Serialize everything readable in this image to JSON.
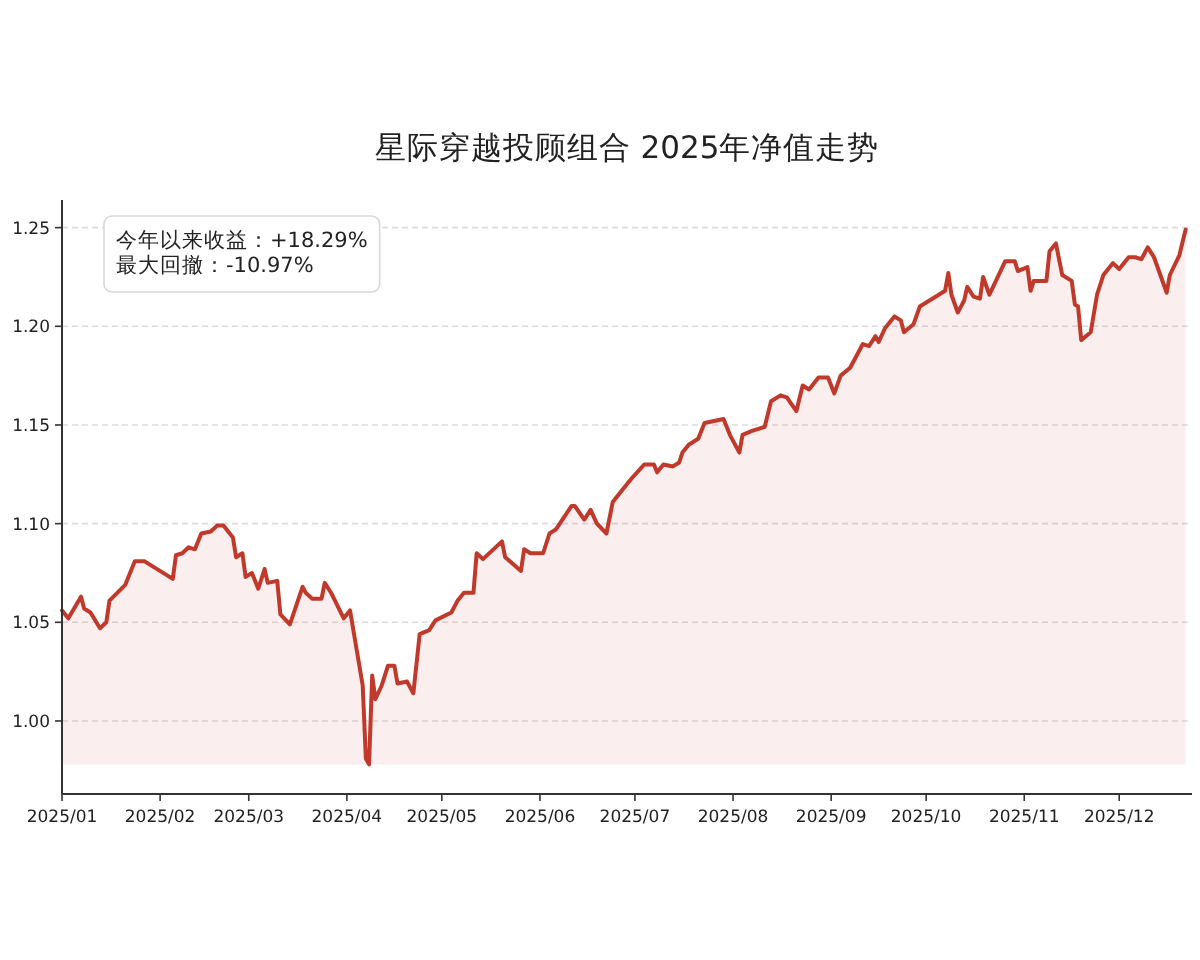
{
  "chart_data": {
    "type": "area",
    "title": "星际穿越投顾组合 2025年净值走势",
    "annotations": [
      "今年以来收益：+18.29%",
      "最大回撤：-10.97%"
    ],
    "xlim": [
      "2025-01-01",
      "2025-12-24"
    ],
    "ylim": [
      0.963,
      1.264
    ],
    "xticks": [
      {
        "value": "2025-01-01",
        "label": "2025/01"
      },
      {
        "value": "2025-02-01",
        "label": "2025/02"
      },
      {
        "value": "2025-03-01",
        "label": "2025/03"
      },
      {
        "value": "2025-04-01",
        "label": "2025/04"
      },
      {
        "value": "2025-05-01",
        "label": "2025/05"
      },
      {
        "value": "2025-06-01",
        "label": "2025/06"
      },
      {
        "value": "2025-07-01",
        "label": "2025/07"
      },
      {
        "value": "2025-08-01",
        "label": "2025/08"
      },
      {
        "value": "2025-09-01",
        "label": "2025/09"
      },
      {
        "value": "2025-10-01",
        "label": "2025/10"
      },
      {
        "value": "2025-11-01",
        "label": "2025/11"
      },
      {
        "value": "2025-12-01",
        "label": "2025/12"
      }
    ],
    "yticks": [
      {
        "value": 1.0,
        "label": "1.00"
      },
      1.05,
      {
        "value": 1.1,
        "label": "1.10"
      },
      1.15,
      {
        "value": 1.2,
        "label": "1.20"
      },
      1.25
    ],
    "grid": "y",
    "series": [
      {
        "color": "#c0392b",
        "x": [
          "2025-01-01",
          "2025-01-03",
          "2025-01-07",
          "2025-01-08",
          "2025-01-10",
          "2025-01-13",
          "2025-01-15",
          "2025-01-16",
          "2025-01-21",
          "2025-01-24",
          "2025-01-27",
          "2025-02-05",
          "2025-02-06",
          "2025-02-08",
          "2025-02-10",
          "2025-02-12",
          "2025-02-14",
          "2025-02-17",
          "2025-02-19",
          "2025-02-21",
          "2025-02-24",
          "2025-02-25",
          "2025-02-27",
          "2025-02-28",
          "2025-03-02",
          "2025-03-04",
          "2025-03-06",
          "2025-03-07",
          "2025-03-10",
          "2025-03-11",
          "2025-03-14",
          "2025-03-18",
          "2025-03-19",
          "2025-03-21",
          "2025-03-24",
          "2025-03-25",
          "2025-03-27",
          "2025-03-31",
          "2025-04-02",
          "2025-04-06",
          "2025-04-07",
          "2025-04-08",
          "2025-04-09",
          "2025-04-10",
          "2025-04-12",
          "2025-04-14",
          "2025-04-16",
          "2025-04-17",
          "2025-04-20",
          "2025-04-22",
          "2025-04-24",
          "2025-04-27",
          "2025-04-29",
          "2025-05-04",
          "2025-05-06",
          "2025-05-08",
          "2025-05-11",
          "2025-05-12",
          "2025-05-14",
          "2025-05-20",
          "2025-05-21",
          "2025-05-26",
          "2025-05-27",
          "2025-05-29",
          "2025-06-02",
          "2025-06-04",
          "2025-06-06",
          "2025-06-11",
          "2025-06-12",
          "2025-06-15",
          "2025-06-17",
          "2025-06-19",
          "2025-06-22",
          "2025-06-24",
          "2025-06-27",
          "2025-06-30",
          "2025-07-04",
          "2025-07-07",
          "2025-07-08",
          "2025-07-10",
          "2025-07-13",
          "2025-07-15",
          "2025-07-16",
          "2025-07-18",
          "2025-07-21",
          "2025-07-23",
          "2025-07-29",
          "2025-07-31",
          "2025-08-03",
          "2025-08-04",
          "2025-08-07",
          "2025-08-11",
          "2025-08-13",
          "2025-08-16",
          "2025-08-18",
          "2025-08-21",
          "2025-08-23",
          "2025-08-25",
          "2025-08-28",
          "2025-08-31",
          "2025-09-02",
          "2025-09-04",
          "2025-09-07",
          "2025-09-11",
          "2025-09-13",
          "2025-09-15",
          "2025-09-16",
          "2025-09-18",
          "2025-09-21",
          "2025-09-23",
          "2025-09-24",
          "2025-09-27",
          "2025-09-29",
          "2025-10-05",
          "2025-10-07",
          "2025-10-08",
          "2025-10-09",
          "2025-10-11",
          "2025-10-13",
          "2025-10-14",
          "2025-10-16",
          "2025-10-18",
          "2025-10-19",
          "2025-10-21",
          "2025-10-26",
          "2025-10-29",
          "2025-10-30",
          "2025-11-02",
          "2025-11-03",
          "2025-11-04",
          "2025-11-08",
          "2025-11-09",
          "2025-11-11",
          "2025-11-13",
          "2025-11-16",
          "2025-11-17",
          "2025-11-18",
          "2025-11-19",
          "2025-11-22",
          "2025-11-24",
          "2025-11-26",
          "2025-11-29",
          "2025-12-01",
          "2025-12-04",
          "2025-12-06",
          "2025-12-08",
          "2025-12-10",
          "2025-12-12",
          "2025-12-14",
          "2025-12-16",
          "2025-12-17",
          "2025-12-20",
          "2025-12-22"
        ],
        "values": [
          1.056,
          1.052,
          1.063,
          1.057,
          1.055,
          1.047,
          1.05,
          1.061,
          1.069,
          1.081,
          1.081,
          1.072,
          1.084,
          1.085,
          1.088,
          1.087,
          1.095,
          1.096,
          1.099,
          1.099,
          1.093,
          1.083,
          1.085,
          1.073,
          1.075,
          1.067,
          1.077,
          1.07,
          1.071,
          1.054,
          1.049,
          1.068,
          1.065,
          1.062,
          1.062,
          1.07,
          1.065,
          1.052,
          1.056,
          1.018,
          0.981,
          0.978,
          1.023,
          1.011,
          1.018,
          1.028,
          1.028,
          1.019,
          1.02,
          1.014,
          1.044,
          1.046,
          1.051,
          1.055,
          1.061,
          1.065,
          1.065,
          1.085,
          1.082,
          1.091,
          1.083,
          1.076,
          1.087,
          1.085,
          1.085,
          1.095,
          1.097,
          1.109,
          1.109,
          1.102,
          1.107,
          1.1,
          1.095,
          1.111,
          1.117,
          1.123,
          1.13,
          1.13,
          1.126,
          1.13,
          1.129,
          1.131,
          1.136,
          1.14,
          1.143,
          1.151,
          1.153,
          1.145,
          1.136,
          1.145,
          1.147,
          1.149,
          1.162,
          1.165,
          1.164,
          1.157,
          1.17,
          1.168,
          1.174,
          1.174,
          1.166,
          1.175,
          1.179,
          1.191,
          1.19,
          1.195,
          1.192,
          1.199,
          1.205,
          1.203,
          1.197,
          1.201,
          1.21,
          1.216,
          1.218,
          1.227,
          1.216,
          1.207,
          1.213,
          1.22,
          1.215,
          1.214,
          1.225,
          1.216,
          1.233,
          1.233,
          1.228,
          1.23,
          1.218,
          1.223,
          1.223,
          1.238,
          1.242,
          1.226,
          1.223,
          1.211,
          1.21,
          1.193,
          1.197,
          1.216,
          1.226,
          1.232,
          1.229,
          1.235,
          1.235,
          1.234,
          1.24,
          1.235,
          1.226,
          1.217,
          1.226,
          1.236,
          1.249
        ]
      }
    ]
  }
}
